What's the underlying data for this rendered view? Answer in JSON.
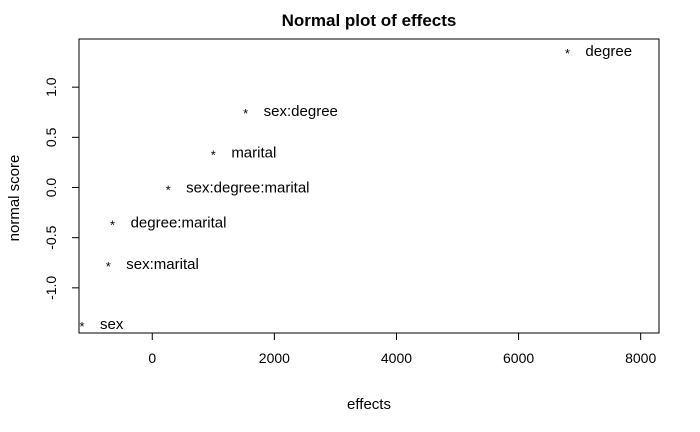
{
  "chart_data": {
    "type": "scatter",
    "title": "Normal plot of effects",
    "xlabel": "effects",
    "ylabel": "normal score",
    "xlim": [
      -1200,
      8300
    ],
    "ylim": [
      -1.45,
      1.48
    ],
    "x_ticks": [
      0,
      2000,
      4000,
      6000,
      8000
    ],
    "x_tick_labels": [
      "0",
      "2000",
      "4000",
      "6000",
      "8000"
    ],
    "y_ticks": [
      -1.0,
      -0.5,
      0.0,
      0.5,
      1.0
    ],
    "y_tick_labels": [
      "-1.0",
      "-0.5",
      "0.0",
      "0.5",
      "1.0"
    ],
    "grid": false,
    "marker": "*",
    "points": [
      {
        "label": "sex",
        "x": -1150,
        "y": -1.36
      },
      {
        "label": "sex:marital",
        "x": -720,
        "y": -0.76
      },
      {
        "label": "degree:marital",
        "x": -650,
        "y": -0.35
      },
      {
        "label": "sex:degree:marital",
        "x": 260,
        "y": 0.0
      },
      {
        "label": "marital",
        "x": 1000,
        "y": 0.35
      },
      {
        "label": "sex:degree",
        "x": 1530,
        "y": 0.76
      },
      {
        "label": "degree",
        "x": 6800,
        "y": 1.36
      }
    ]
  }
}
